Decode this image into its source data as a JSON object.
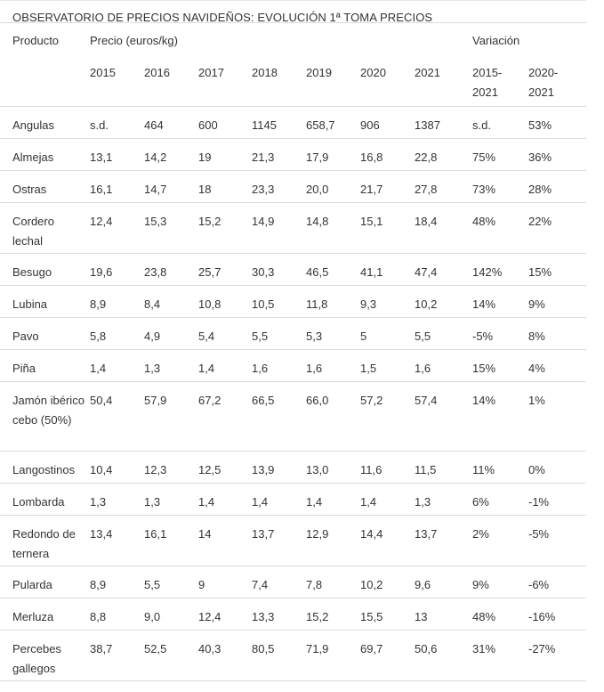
{
  "title": "OBSERVATORIO DE PRECIOS NAVIDEÑOS: EVOLUCIÓN 1ª TOMA PRECIOS",
  "headers": {
    "product": "Producto",
    "price": "Precio (euros/kg)",
    "variation": "Variación",
    "years": [
      "2015",
      "2016",
      "2017",
      "2018",
      "2019",
      "2020",
      "2021"
    ],
    "var_cols": [
      "2015-\n2021",
      "2020-\n2021"
    ]
  },
  "rows": [
    {
      "product": "Angulas",
      "values": [
        "s.d.",
        "464",
        "600",
        "1145",
        "658,7",
        "906",
        "1387"
      ],
      "var": [
        "s.d.",
        "53%"
      ]
    },
    {
      "product": "Almejas",
      "values": [
        "13,1",
        "14,2",
        "19",
        "21,3",
        "17,9",
        "16,8",
        "22,8"
      ],
      "var": [
        "75%",
        "36%"
      ]
    },
    {
      "product": "Ostras",
      "values": [
        "16,1",
        "14,7",
        "18",
        "23,3",
        "20,0",
        "21,7",
        "27,8"
      ],
      "var": [
        "73%",
        "28%"
      ]
    },
    {
      "product": "Cordero lechal",
      "values": [
        "12,4",
        "15,3",
        "15,2",
        "14,9",
        "14,8",
        "15,1",
        "18,4"
      ],
      "var": [
        "48%",
        "22%"
      ]
    },
    {
      "product": "Besugo",
      "values": [
        "19,6",
        "23,8",
        "25,7",
        "30,3",
        "46,5",
        "41,1",
        "47,4"
      ],
      "var": [
        "142%",
        "15%"
      ]
    },
    {
      "product": "Lubina",
      "values": [
        "8,9",
        "8,4",
        "10,8",
        "10,5",
        "11,8",
        "9,3",
        "10,2"
      ],
      "var": [
        "14%",
        "9%"
      ]
    },
    {
      "product": "Pavo",
      "values": [
        "5,8",
        "4,9",
        "5,4",
        "5,5",
        "5,3",
        "5",
        "5,5"
      ],
      "var": [
        "-5%",
        "8%"
      ]
    },
    {
      "product": "Piña",
      "values": [
        "1,4",
        "1,3",
        "1,4",
        "1,6",
        "1,6",
        "1,5",
        "1,6"
      ],
      "var": [
        "15%",
        "4%"
      ]
    },
    {
      "product": "Jamón ibérico cebo (50%)",
      "values": [
        "50,4",
        "57,9",
        "67,2",
        "66,5",
        "66,0",
        "57,2",
        "57,4"
      ],
      "var": [
        "14%",
        "1%"
      ]
    },
    {
      "product": "Langostinos",
      "values": [
        "10,4",
        "12,3",
        "12,5",
        "13,9",
        "13,0",
        "11,6",
        "11,5"
      ],
      "var": [
        "11%",
        "0%"
      ]
    },
    {
      "product": "Lombarda",
      "values": [
        "1,3",
        "1,3",
        "1,4",
        "1,4",
        "1,4",
        "1,4",
        "1,3"
      ],
      "var": [
        "6%",
        "-1%"
      ]
    },
    {
      "product": "Redondo de ternera",
      "values": [
        "13,4",
        "16,1",
        "14",
        "13,7",
        "12,9",
        "14,4",
        "13,7"
      ],
      "var": [
        "2%",
        "-5%"
      ]
    },
    {
      "product": "Pularda",
      "values": [
        "8,9",
        "5,5",
        "9",
        "7,4",
        "7,8",
        "10,2",
        "9,6"
      ],
      "var": [
        "9%",
        "-6%"
      ]
    },
    {
      "product": "Merluza",
      "values": [
        "8,8",
        "9,0",
        "12,4",
        "13,3",
        "15,2",
        "15,5",
        "13"
      ],
      "var": [
        "48%",
        "-16%"
      ]
    },
    {
      "product": "Percebes gallegos",
      "values": [
        "38,7",
        "52,5",
        "40,3",
        "80,5",
        "71,9",
        "69,7",
        "50,6"
      ],
      "var": [
        "31%",
        "-27%"
      ]
    }
  ]
}
